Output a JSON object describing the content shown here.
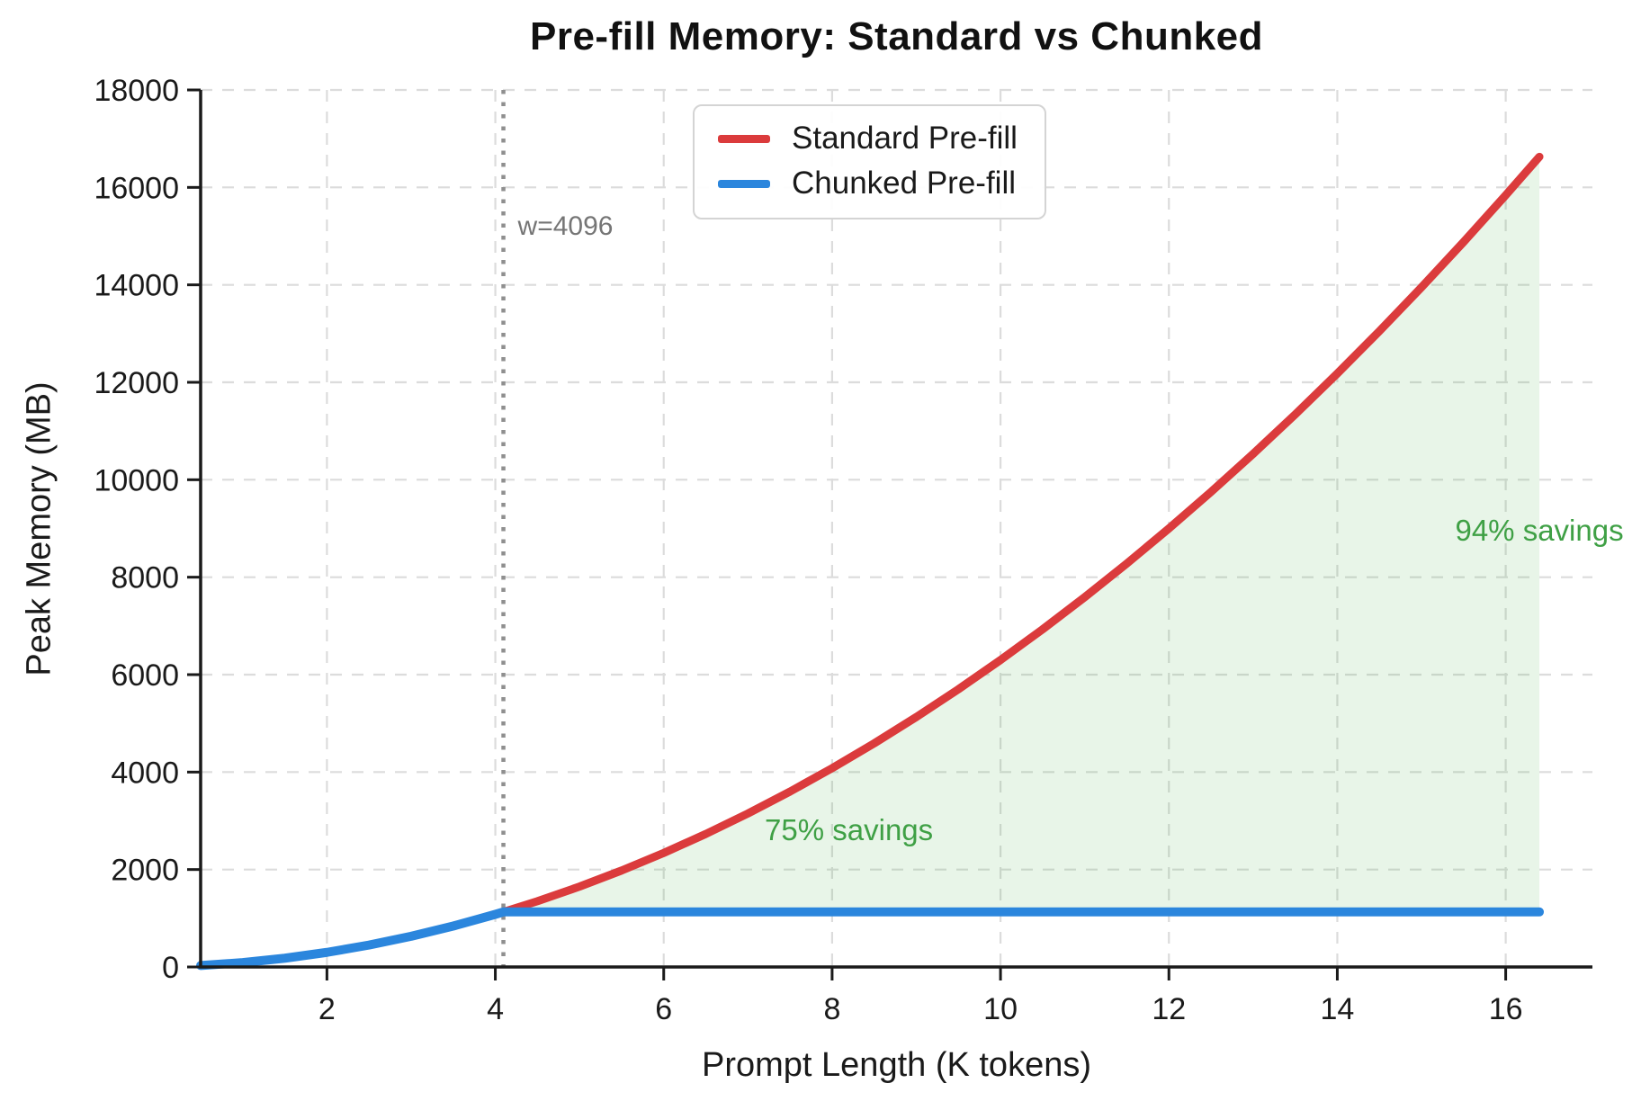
{
  "page": {
    "background": "#ffffff"
  },
  "chart_data": {
    "type": "line",
    "title": "Pre-fill Memory: Standard vs Chunked",
    "xlabel": "Prompt Length (K tokens)",
    "ylabel": "Peak Memory (MB)",
    "xlim": [
      0.5,
      17.03
    ],
    "ylim": [
      0,
      18000
    ],
    "x_ticks": [
      2,
      4,
      6,
      8,
      10,
      12,
      14,
      16
    ],
    "y_ticks": [
      0,
      2000,
      4000,
      6000,
      8000,
      10000,
      12000,
      14000,
      16000,
      18000
    ],
    "grid": true,
    "grid_color": "#dcdcdc",
    "axis_color": "#1a1a1a",
    "legend": {
      "position": "upper center-left",
      "border_color": "#d4d4d4",
      "background": "#ffffff",
      "entries": [
        {
          "label": "Standard Pre-fill",
          "color": "#db3b3c"
        },
        {
          "label": "Chunked Pre-fill",
          "color": "#2b86dd"
        }
      ]
    },
    "series": [
      {
        "name": "Standard Pre-fill",
        "color": "#db3b3c",
        "line_width": 9,
        "x": [
          0.5,
          1,
          1.5,
          2,
          2.5,
          3,
          3.5,
          4,
          4.096,
          4.5,
          5,
          5.5,
          6,
          6.5,
          7,
          7.5,
          8,
          8.5,
          9,
          9.5,
          10,
          10.5,
          11,
          11.5,
          12,
          12.5,
          13,
          13.5,
          14,
          14.5,
          15,
          15.5,
          16,
          16.4
        ],
        "y": [
          30,
          90,
          180,
          300,
          450,
          630,
          840,
          1080,
          1130,
          1350,
          1650,
          1980,
          2340,
          2730,
          3150,
          3600,
          4080,
          4590,
          5130,
          5700,
          6300,
          6930,
          7590,
          8280,
          9000,
          9750,
          10530,
          11340,
          12180,
          13050,
          13950,
          14880,
          15840,
          16628
        ]
      },
      {
        "name": "Chunked Pre-fill",
        "color": "#2b86dd",
        "line_width": 10,
        "x": [
          0.5,
          1,
          1.5,
          2,
          2.5,
          3,
          3.5,
          4,
          4.096,
          16.4
        ],
        "y": [
          30,
          90,
          180,
          300,
          450,
          630,
          840,
          1080,
          1130,
          1130
        ]
      }
    ],
    "fill_between": {
      "x_start": 4.096,
      "x_end": 16.4,
      "upper_series": "Standard Pre-fill",
      "lower_series": "Chunked Pre-fill",
      "color": "#4caf50",
      "opacity": 0.13
    },
    "chunk_boundary_line": {
      "x": 4.096,
      "style": "dotted",
      "line_color": "#8f8f8f",
      "label": "w=4096",
      "label_color": "#757575",
      "label_y": 15200
    },
    "annotations": [
      {
        "text": "75% savings",
        "x": 8.2,
        "y": 2810,
        "color": "#3fa045"
      },
      {
        "text": "94% savings",
        "x": 16.4,
        "y": 8950,
        "color": "#3fa045"
      }
    ]
  }
}
